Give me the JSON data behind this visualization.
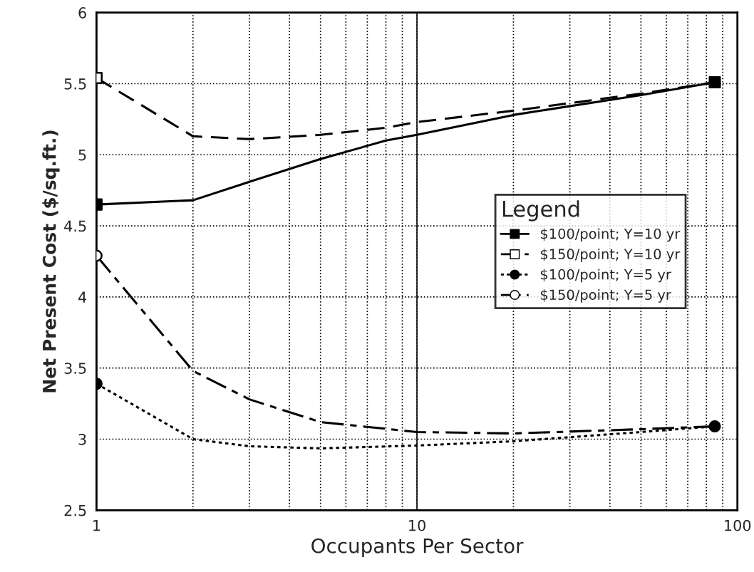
{
  "chart_data": {
    "type": "line",
    "xlabel": "Occupants Per Sector",
    "ylabel": "Net Present Cost ($/sq.ft.)",
    "legend_title": "Legend",
    "legend": "right",
    "grid": true,
    "log": "x",
    "xlim": [
      1,
      100
    ],
    "xticks": [
      1,
      10,
      100
    ],
    "ylim": [
      2.5,
      6
    ],
    "yticks": [
      2.5,
      3,
      3.5,
      4,
      4.5,
      5,
      5.5,
      6
    ],
    "ref_lines": [
      {
        "axis": "x",
        "value": 10,
        "color": "#000000",
        "line_style": "solid"
      }
    ],
    "series": [
      {
        "name": "$100/point; Y=10 yr",
        "color": "#000000",
        "line_style": "solid",
        "x": [
          1,
          2,
          3,
          5,
          8,
          10,
          20,
          50,
          85
        ],
        "values": [
          4.65,
          4.68,
          4.81,
          4.97,
          5.1,
          5.14,
          5.28,
          5.42,
          5.51
        ]
      },
      {
        "name": "$150/point; Y=10 yr",
        "color": "#000000",
        "line_style": "dashed",
        "x": [
          1,
          2,
          3,
          5,
          8,
          10,
          20,
          50,
          85
        ],
        "values": [
          5.54,
          5.13,
          5.11,
          5.14,
          5.19,
          5.23,
          5.31,
          5.43,
          5.51
        ]
      },
      {
        "name": "$100/point; Y=5 yr",
        "color": "#000000",
        "line_style": "dotted",
        "x": [
          1,
          2,
          3,
          5,
          10,
          20,
          50,
          85
        ],
        "values": [
          3.39,
          3.0,
          2.95,
          2.935,
          2.955,
          2.985,
          3.05,
          3.09
        ]
      },
      {
        "name": "$150/point; Y=5 yr",
        "color": "#000000",
        "line_style": "dashdot",
        "x": [
          1,
          2,
          3,
          5,
          10,
          20,
          50,
          85
        ],
        "values": [
          4.29,
          3.48,
          3.28,
          3.12,
          3.05,
          3.04,
          3.07,
          3.09
        ]
      },
      {
        "type": "scatter",
        "color": "#000000",
        "marker": "square",
        "x": [
          1,
          85
        ],
        "values": [
          4.65,
          5.51
        ]
      },
      {
        "type": "scatter",
        "color": "#ffffff",
        "marker": "square",
        "x": [
          1
        ],
        "values": [
          5.54
        ]
      },
      {
        "type": "scatter",
        "color": "#000000",
        "marker": "circle",
        "x": [
          1,
          85
        ],
        "values": [
          3.39,
          3.09
        ]
      },
      {
        "type": "scatter",
        "color": "#ffffff",
        "marker": "circle",
        "x": [
          1
        ],
        "values": [
          4.29
        ]
      }
    ]
  }
}
